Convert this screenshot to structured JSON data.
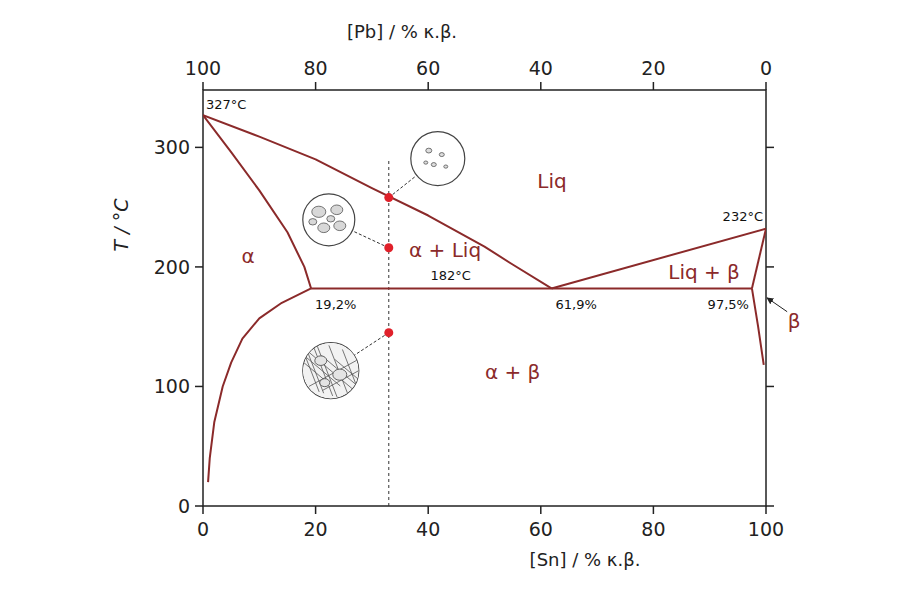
{
  "chart_data": {
    "type": "phase_diagram",
    "xlabel": "[Sn] / % κ.β.",
    "x2label": "[Pb] / % κ.β.",
    "ylabel": "T / °C",
    "xlim": [
      0,
      100
    ],
    "xticks": [
      0,
      20,
      40,
      60,
      80,
      100
    ],
    "x2lim": [
      100,
      0
    ],
    "x2ticks": [
      100,
      80,
      60,
      40,
      20,
      0
    ],
    "ylim": [
      0,
      348
    ],
    "yticks": [
      0,
      100,
      200,
      300
    ],
    "color": "#8b2a2a",
    "series": [
      {
        "x": [
          0,
          10,
          20,
          30,
          40,
          50,
          55,
          61.9
        ],
        "values": [
          327,
          309,
          290,
          266,
          243,
          217,
          202,
          182
        ]
      },
      {
        "x": [
          61.9,
          100
        ],
        "values": [
          182,
          232
        ]
      },
      {
        "x": [
          0,
          5,
          10,
          15,
          18,
          19.2
        ],
        "values": [
          327,
          296,
          264,
          229,
          200,
          182
        ]
      },
      {
        "x": [
          19.2,
          97.5
        ],
        "values": [
          182,
          182
        ]
      },
      {
        "x": [
          19.2,
          14,
          10,
          7,
          5,
          3.5,
          2,
          1.2,
          0.9
        ],
        "values": [
          182,
          170,
          157,
          140,
          120,
          100,
          70,
          40,
          20
        ]
      },
      {
        "x": [
          97.5,
          100
        ],
        "values": [
          182,
          232
        ]
      },
      {
        "x": [
          97.5,
          98.6,
          99.6
        ],
        "values": [
          182,
          150,
          118
        ]
      }
    ],
    "guide_line": {
      "x": [
        33,
        33
      ],
      "values": [
        0,
        289
      ],
      "line_style": "dashed",
      "color": "#333333"
    },
    "points": {
      "x": [
        33,
        33,
        33
      ],
      "values": [
        258,
        216,
        145
      ],
      "color": "#e0202a",
      "marker": "circle"
    },
    "temperature_labels": [
      {
        "x": 0,
        "value": 327,
        "label": "327°C"
      },
      {
        "x": 100,
        "value": 232,
        "label": "232°C"
      },
      {
        "x": 44,
        "value": 182,
        "label": "182°C"
      }
    ],
    "composition_labels": [
      {
        "value": 19.2,
        "y": 182,
        "label": "19,2%"
      },
      {
        "value": 61.9,
        "y": 182,
        "label": "61,9%"
      },
      {
        "value": 97.5,
        "y": 182,
        "label": "97,5%"
      }
    ],
    "annotations": [
      {
        "text": "Liq",
        "x": 62,
        "y": 272
      },
      {
        "text": "α",
        "x": 8,
        "y": 209
      },
      {
        "text": "α + Liq",
        "x": 43,
        "y": 214
      },
      {
        "text": "Liq + β",
        "x": 89,
        "y": 196
      },
      {
        "text": "α + β",
        "x": 55,
        "y": 112
      },
      {
        "text": "β",
        "x": 105,
        "y": 155,
        "arrow_to": [
          100,
          175
        ]
      }
    ]
  }
}
